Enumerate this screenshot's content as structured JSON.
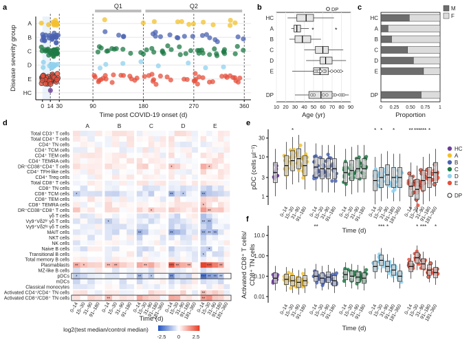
{
  "colors": {
    "HC": "#6a3d9a",
    "A": "#f2c12e",
    "B": "#4a62b0",
    "C": "#1e7a45",
    "D": "#8fd1ee",
    "E": "#e6503c",
    "male": "#6d6d6d",
    "female": "#dcdcdc",
    "heat_low": "#2b59c3",
    "heat_high": "#e8432d"
  },
  "chart_data": [
    {
      "panel": "a",
      "type": "scatter",
      "ylabel": "Disease severity group",
      "xlabel": "Time post COVID-19 onset (d)",
      "categories": [
        "HC",
        "E",
        "D",
        "C",
        "B",
        "A"
      ],
      "xticks": [
        0,
        14,
        30,
        90,
        180,
        270,
        360
      ],
      "xlim": [
        -12,
        372
      ],
      "periods": [
        {
          "label": "Q1",
          "range": [
            90,
            180
          ]
        },
        {
          "label": "Q2",
          "range": [
            180,
            360
          ]
        }
      ],
      "point_density": [
        {
          "group": "A",
          "early": 10,
          "late": 12
        },
        {
          "group": "B",
          "early": 22,
          "late": 20
        },
        {
          "group": "C",
          "early": 28,
          "late": 40
        },
        {
          "group": "D",
          "early": 12,
          "late": 8
        },
        {
          "group": "E",
          "early": 40,
          "late": 45
        },
        {
          "group": "HC",
          "early": 1,
          "late": 0
        }
      ]
    },
    {
      "panel": "b",
      "type": "box",
      "xlabel": "Age (yr)",
      "legend": "DP",
      "categories": [
        "HC",
        "A",
        "B",
        "C",
        "D",
        "E",
        "DP"
      ],
      "xticks": [
        10,
        20,
        30,
        40,
        50,
        60,
        70,
        80,
        90
      ],
      "xlim": [
        10,
        90
      ],
      "series": [
        {
          "name": "HC",
          "min": 22,
          "q1": 32,
          "median": 42,
          "q3": 50,
          "max": 72
        },
        {
          "name": "A",
          "min": 26,
          "q1": 29,
          "median": 32,
          "q3": 36,
          "max": 45
        },
        {
          "name": "B",
          "min": 24,
          "q1": 30,
          "median": 38,
          "q3": 47,
          "max": 58
        },
        {
          "name": "C",
          "min": 40,
          "q1": 52,
          "median": 60,
          "q3": 66,
          "max": 82
        },
        {
          "name": "D",
          "min": 42,
          "q1": 57,
          "median": 63,
          "q3": 70,
          "max": 85
        },
        {
          "name": "E",
          "min": 27,
          "q1": 50,
          "median": 57,
          "q3": 66,
          "max": 82
        },
        {
          "name": "DP",
          "min": 30,
          "q1": 45,
          "median": 58,
          "q3": 70,
          "max": 88
        }
      ],
      "annotations": [
        {
          "group": "A",
          "text": "*"
        },
        {
          "group": "A",
          "text": "*"
        }
      ]
    },
    {
      "panel": "c",
      "type": "bar",
      "xlabel": "Proportion",
      "legend": [
        "M",
        "F"
      ],
      "categories": [
        "HC",
        "A",
        "B",
        "C",
        "D",
        "E",
        "DP"
      ],
      "xticks": [
        "0",
        "0.25",
        "0.50",
        "0.75",
        "1"
      ],
      "series": [
        {
          "name": "M",
          "values": [
            0.48,
            0.12,
            0.18,
            0.45,
            0.55,
            0.72,
            0.68
          ]
        },
        {
          "name": "F",
          "values": [
            0.52,
            0.88,
            0.82,
            0.55,
            0.45,
            0.28,
            0.32
          ]
        }
      ]
    },
    {
      "panel": "d",
      "type": "heatmap",
      "xlabel": "Time (d)",
      "groups": [
        "A",
        "B",
        "C",
        "D",
        "E"
      ],
      "timepoints_short": [
        "0–14",
        "15–30",
        "31–90",
        "91–180"
      ],
      "timepoints_long": [
        "0–14",
        "15–30",
        "31–90",
        "91–180",
        "181–360"
      ],
      "legend_title": "log2(test median/control median)",
      "legend_ticks": [
        "-2.5",
        "0",
        "2.5"
      ],
      "range": [
        -3,
        3
      ],
      "rows": [
        "Total CD3⁺ T cells",
        "Total CD4⁺ T cells",
        "CD4⁺ T_N cells",
        "CD4⁺ T_CM cells",
        "CD4⁺ T_EM cells",
        "CD4⁺ T_EMRA cells",
        "DR⁺CD38⁺CD4⁺ T cells",
        "CD4⁺ T_FH-like cells",
        "CD4⁺ T_reg cells",
        "Total CD8⁺ T cells",
        "CD8⁺ T_N cells",
        "CD8⁺ T_CM cells",
        "CD8⁺ T_EM cells",
        "CD8⁺ T_EMRA cells",
        "DR⁺CD38⁺CD8⁺ T cells",
        "γδ T cells",
        "Vγ9⁺Vδ2^hi γδ T cells",
        "Vγ9⁺Vδ2^lo γδ T cells",
        "MAIT cells",
        "NKT cells",
        "NK cells",
        "Naive B cells",
        "Transitional B cells",
        "Total memory B cells",
        "Plasmablasts",
        "MZ-like B cells",
        "pDCs",
        "mDCs",
        "Classical monocytes",
        "Activated CD4⁺/CD4⁺ T_N cells",
        "Activated CD8⁺/CD8⁺ T_N cells"
      ],
      "row_labels": [
        "Total CD3⁺ T cells",
        "Total CD4⁺ T cells",
        "CD4⁺ TN cells",
        "CD4⁺ TCM cells",
        "CD4⁺ TEM cells",
        "CD4⁺ TEMRA cells",
        "DR⁺CD38⁺CD4⁺ T cells",
        "CD4⁺ TFH-like cells",
        "CD4⁺ Treg cells",
        "Total CD8⁺ T cells",
        "CD8⁺ TN cells",
        "CD8⁺ TCM cells",
        "CD8⁺ TEM cells",
        "CD8⁺ TEMRA cells",
        "DR⁺CD38⁺CD8⁺ T cells",
        "γδ T cells",
        "Vγ9⁺Vδ2ʰⁱ γδ T cells",
        "Vγ9⁺Vδ2ˡᵒ γδ T cells",
        "MAIT cells",
        "NKT cells",
        "NK cells",
        "Naive B cells",
        "Transitional B cells",
        "Total memory B cells",
        "Plasmablasts",
        "MZ-like B cells",
        "pDCs",
        "mDCs",
        "Classical monocytes",
        "Activated CD4⁺/CD4⁺ TN cells",
        "Activated CD8⁺/CD8⁺ TN cells"
      ]
    },
    {
      "panel": "e",
      "type": "box",
      "ylabel": "pDC (cells µl⁻¹)",
      "xlabel": "Time (d)",
      "scale": "log",
      "yticks": [
        "1",
        "3",
        "10",
        "30"
      ],
      "ylim": [
        0.6,
        50
      ],
      "legend": [
        "HC",
        "A",
        "B",
        "C",
        "D",
        "E",
        "DP"
      ],
      "groups": [
        {
          "name": "HC",
          "timepoints": [
            "HC"
          ],
          "medians": [
            4
          ]
        },
        {
          "name": "A",
          "timepoints": [
            "0–14",
            "15–30",
            "31–90",
            "91–180"
          ],
          "medians": [
            6,
            8,
            9,
            6
          ]
        },
        {
          "name": "B",
          "timepoints": [
            "0–14",
            "15–30",
            "31–90",
            "91–180"
          ],
          "medians": [
            5.5,
            5,
            5,
            5
          ]
        },
        {
          "name": "C",
          "timepoints": [
            "0–14",
            "15–30",
            "31–90",
            "91–180"
          ],
          "medians": [
            4,
            4.5,
            5,
            5
          ]
        },
        {
          "name": "D",
          "timepoints": [
            "0–14",
            "15–30",
            "31–90",
            "91–180",
            "181–360"
          ],
          "medians": [
            2.5,
            3,
            3.5,
            3,
            3
          ]
        },
        {
          "name": "E",
          "timepoints": [
            "0–14",
            "15–30",
            "31–90",
            "91–180",
            "181–360"
          ],
          "medians": [
            1.8,
            1.5,
            2.5,
            3,
            4
          ]
        }
      ],
      "significance": [
        {
          "group": "A",
          "index": 1,
          "text": "*"
        },
        {
          "group": "D",
          "index": 0,
          "text": "*"
        },
        {
          "group": "D",
          "index": 1,
          "text": "*"
        },
        {
          "group": "D",
          "index": 3,
          "text": "*"
        },
        {
          "group": "E",
          "index": 0,
          "text": "**"
        },
        {
          "group": "E",
          "index": 1,
          "text": "***"
        },
        {
          "group": "E",
          "index": 2,
          "text": "***"
        },
        {
          "group": "E",
          "index": 3,
          "text": "*"
        }
      ]
    },
    {
      "panel": "f",
      "type": "box",
      "ylabel": "Activated CD8⁺ T cells/ CD8⁺ TN cells",
      "xlabel": "Time (d)",
      "scale": "log",
      "yticks": [
        "0.01",
        "0.10",
        "1.00",
        "10.0"
      ],
      "ylim": [
        0.005,
        30
      ],
      "groups": [
        {
          "name": "HC",
          "timepoints": [
            "HC"
          ],
          "medians": [
            0.08
          ]
        },
        {
          "name": "A",
          "timepoints": [
            "0–14",
            "15–30",
            "31–90",
            "91–180"
          ],
          "medians": [
            0.07,
            0.06,
            0.05,
            0.06
          ]
        },
        {
          "name": "B",
          "timepoints": [
            "0–14",
            "15–30",
            "31–90",
            "91–180"
          ],
          "medians": [
            0.1,
            0.08,
            0.09,
            0.06
          ]
        },
        {
          "name": "C",
          "timepoints": [
            "0–14",
            "15–30",
            "31–90",
            "91–180"
          ],
          "medians": [
            0.12,
            0.1,
            0.09,
            0.08
          ]
        },
        {
          "name": "D",
          "timepoints": [
            "0–14",
            "15–30",
            "31–90",
            "91–180",
            "181–360"
          ],
          "medians": [
            0.3,
            0.6,
            0.3,
            0.2,
            0.1
          ]
        },
        {
          "name": "E",
          "timepoints": [
            "0–14",
            "15–30",
            "31–90",
            "91–180",
            "181–360"
          ],
          "medians": [
            0.3,
            0.8,
            0.4,
            0.2,
            0.15
          ]
        }
      ],
      "significance": [
        {
          "group": "B",
          "index": 0,
          "text": "**"
        },
        {
          "group": "D",
          "index": 1,
          "text": "***"
        },
        {
          "group": "D",
          "index": 2,
          "text": "*"
        },
        {
          "group": "E",
          "index": 1,
          "text": "*"
        },
        {
          "group": "E",
          "index": 2,
          "text": "***"
        },
        {
          "group": "E",
          "index": 4,
          "text": "*"
        }
      ]
    }
  ]
}
